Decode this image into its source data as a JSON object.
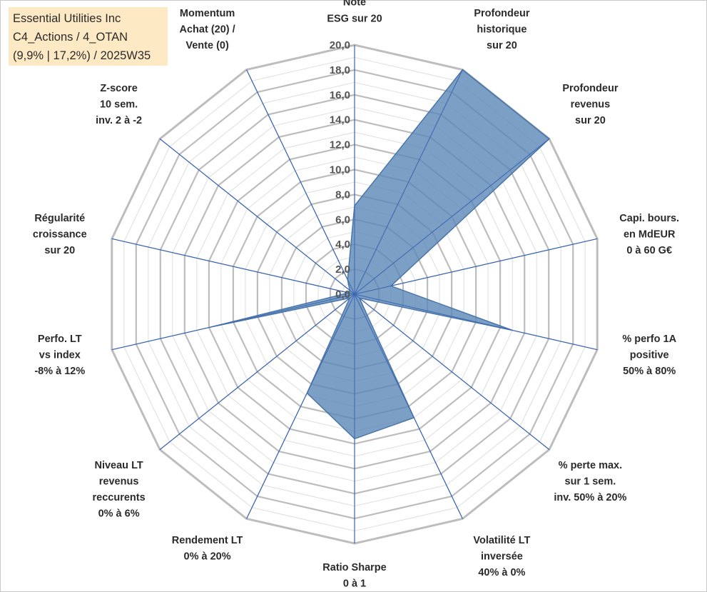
{
  "title_box": {
    "line1": "Essential Utilities Inc",
    "line2": "C4_Actions / 4_OTAN",
    "line3": "(9,9% | 17,2%) / 2025W35"
  },
  "chart_data": {
    "type": "radar",
    "title": "",
    "rmin": 0,
    "rmax": 20,
    "tick_step": 2,
    "tick_labels": [
      "0,0",
      "2,0",
      "4,0",
      "6,0",
      "8,0",
      "10,0",
      "12,0",
      "14,0",
      "16,0",
      "18,0",
      "20,0"
    ],
    "grid": true,
    "colors": {
      "fill": "#5b87b8",
      "fill_opacity": 0.8,
      "edge": "#4a76aa",
      "spoke": "#3a64b0",
      "grid_major": "#bdbdbd",
      "grid_minor": "#dedede"
    },
    "categories": [
      [
        "Note",
        "ESG sur 20"
      ],
      [
        "Profondeur",
        "historique",
        "sur 20"
      ],
      [
        "Profondeur",
        "revenus",
        "sur 20"
      ],
      [
        "Capi. bours.",
        "en MdEUR",
        "0 à 60 G€"
      ],
      [
        "% perfo 1A",
        "positive",
        "50% à 80%"
      ],
      [
        "% perte max.",
        "sur 1 sem.",
        "inv. 50% à 20%"
      ],
      [
        "Volatilité LT",
        "inversée",
        "40% à 0%"
      ],
      [
        "Ratio Sharpe",
        "0 à 1"
      ],
      [
        "Rendement LT",
        "0% à 20%"
      ],
      [
        "Niveau LT",
        "revenus",
        "reccurents",
        "0% à 6%"
      ],
      [
        "Perfo. LT",
        "vs index",
        "-8% à 12%"
      ],
      [
        "Régularité",
        "croissance",
        "sur 20"
      ],
      [
        "Z-score",
        "10 sem.",
        "inv. 2 à -2"
      ],
      [
        "Momentum",
        "Achat (20) /",
        "Vente (0)"
      ]
    ],
    "series": [
      {
        "values": [
          7.1,
          20.0,
          20.0,
          3.0,
          13.0,
          0.5,
          11.0,
          11.6,
          8.8,
          0.5,
          11.9,
          0.5,
          0.5,
          1.3
        ]
      }
    ]
  }
}
